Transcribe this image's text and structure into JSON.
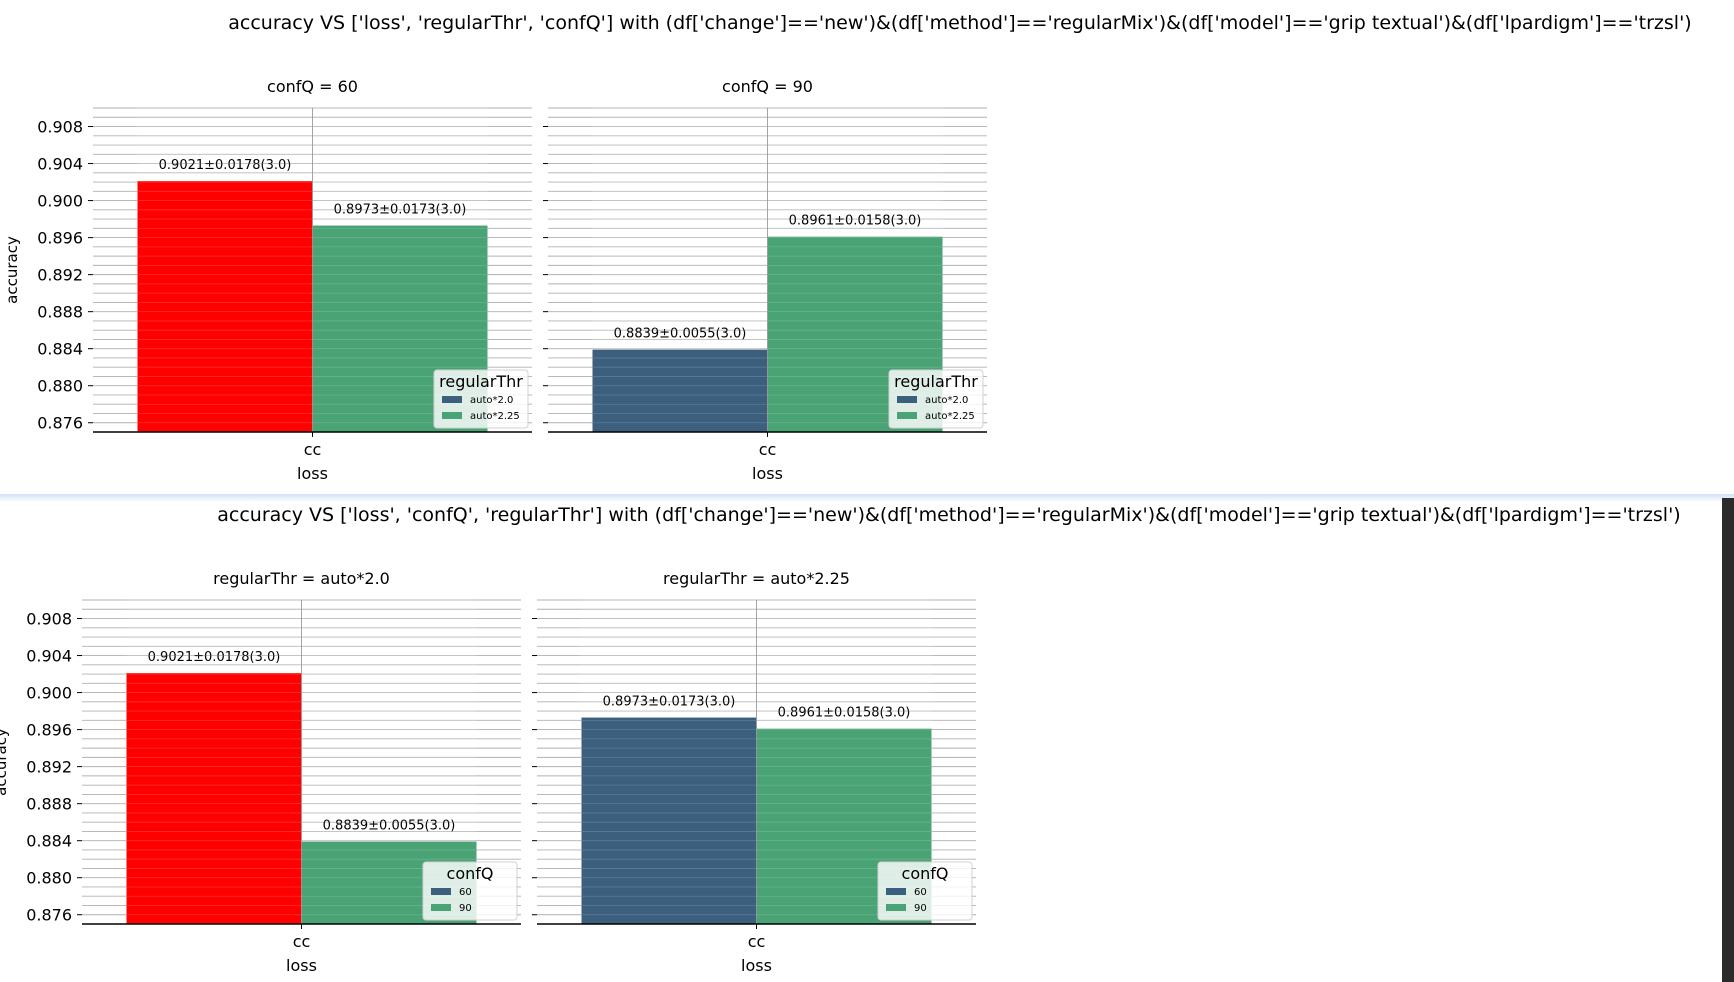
{
  "chart_data": [
    {
      "title": "accuracy VS ['loss', 'regularThr', 'confQ'] with (df['change']=='new')&(df['method']=='regularMix')&(df['model']=='grip textual')&(df['lpardigm']=='trzsl')",
      "type": "bar",
      "ylabel": "accuracy",
      "xlabel": "loss",
      "ylim": [
        0.875,
        0.91
      ],
      "yticks": [
        "0.876",
        "0.880",
        "0.884",
        "0.888",
        "0.892",
        "0.896",
        "0.900",
        "0.904",
        "0.908"
      ],
      "legend_title": "regularThr",
      "panels": [
        {
          "title": "confQ = 60",
          "category": "cc",
          "bars": [
            {
              "series": "auto*2.0",
              "value": 0.9021,
              "label": "0.9021±0.0178(3.0)",
              "color": "#ff0000"
            },
            {
              "series": "auto*2.25",
              "value": 0.8973,
              "label": "0.8973±0.0173(3.0)",
              "color": "#4aa374"
            }
          ],
          "legend": [
            {
              "name": "auto*2.0",
              "color": "#3b5f7d"
            },
            {
              "name": "auto*2.25",
              "color": "#4aa374"
            }
          ]
        },
        {
          "title": "confQ = 90",
          "category": "cc",
          "bars": [
            {
              "series": "auto*2.0",
              "value": 0.8839,
              "label": "0.8839±0.0055(3.0)",
              "color": "#3b5f7d"
            },
            {
              "series": "auto*2.25",
              "value": 0.8961,
              "label": "0.8961±0.0158(3.0)",
              "color": "#4aa374"
            }
          ],
          "legend": [
            {
              "name": "auto*2.0",
              "color": "#3b5f7d"
            },
            {
              "name": "auto*2.25",
              "color": "#4aa374"
            }
          ]
        }
      ]
    },
    {
      "title": "accuracy VS ['loss', 'confQ', 'regularThr'] with (df['change']=='new')&(df['method']=='regularMix')&(df['model']=='grip textual')&(df['lpardigm']=='trzsl')",
      "type": "bar",
      "ylabel": "accuracy",
      "xlabel": "loss",
      "ylim": [
        0.875,
        0.91
      ],
      "yticks": [
        "0.876",
        "0.880",
        "0.884",
        "0.888",
        "0.892",
        "0.896",
        "0.900",
        "0.904",
        "0.908"
      ],
      "legend_title": "confQ",
      "panels": [
        {
          "title": "regularThr = auto*2.0",
          "category": "cc",
          "bars": [
            {
              "series": "60",
              "value": 0.9021,
              "label": "0.9021±0.0178(3.0)",
              "color": "#ff0000"
            },
            {
              "series": "90",
              "value": 0.8839,
              "label": "0.8839±0.0055(3.0)",
              "color": "#4aa374"
            }
          ],
          "legend": [
            {
              "name": "60",
              "color": "#3b5f7d"
            },
            {
              "name": "90",
              "color": "#4aa374"
            }
          ]
        },
        {
          "title": "regularThr = auto*2.25",
          "category": "cc",
          "bars": [
            {
              "series": "60",
              "value": 0.8973,
              "label": "0.8973±0.0173(3.0)",
              "color": "#3b5f7d"
            },
            {
              "series": "90",
              "value": 0.8961,
              "label": "0.8961±0.0158(3.0)",
              "color": "#4aa374"
            }
          ],
          "legend": [
            {
              "name": "60",
              "color": "#3b5f7d"
            },
            {
              "name": "90",
              "color": "#4aa374"
            }
          ]
        }
      ]
    }
  ]
}
